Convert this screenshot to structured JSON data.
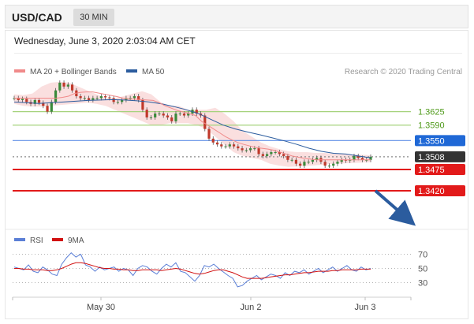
{
  "header": {
    "pair": "USD/CAD",
    "timeframe": "30 MIN"
  },
  "datetime": "Wednesday, June 3, 2020 2:03:04 AM CET",
  "legend": {
    "ma20": {
      "label": "MA 20 + Bollinger Bands",
      "color": "#f08a8a"
    },
    "ma50": {
      "label": "MA 50",
      "color": "#2b5c9e"
    },
    "credit": "Research © 2020 Trading Central"
  },
  "rsi_legend": {
    "rsi": {
      "label": "RSI",
      "color": "#5b7fd6"
    },
    "ma9": {
      "label": "9MA",
      "color": "#d11111"
    }
  },
  "chart_data": {
    "type": "line",
    "price_range": [
      1.333,
      1.371
    ],
    "x_tick_labels": [
      "May 30",
      "Jun 2",
      "Jun 3"
    ],
    "levels": [
      {
        "value": "1.3625",
        "price": 1.3625,
        "color": "#a6d27c",
        "label_color": "#4f9a1a"
      },
      {
        "value": "1.3590",
        "price": 1.359,
        "color": "#a6d27c",
        "label_color": "#4f9a1a"
      },
      {
        "value": "1.3550",
        "price": 1.355,
        "color": "#5b8de6",
        "badge": "#1f68d6"
      },
      {
        "value": "1.3508",
        "price": 1.3508,
        "color": "#8a8a8a",
        "badge": "#333333",
        "dotted": true
      },
      {
        "value": "1.3475",
        "price": 1.3475,
        "color": "#e21a1a",
        "badge": "#e21a1a"
      },
      {
        "value": "1.3420",
        "price": 1.342,
        "color": "#e21a1a",
        "badge": "#e21a1a"
      }
    ],
    "close": [
      1.366,
      1.3655,
      1.3658,
      1.365,
      1.3645,
      1.3655,
      1.3648,
      1.364,
      1.3625,
      1.365,
      1.368,
      1.37,
      1.369,
      1.3695,
      1.368,
      1.3665,
      1.366,
      1.366,
      1.3655,
      1.366,
      1.366,
      1.3665,
      1.3662,
      1.366,
      1.365,
      1.365,
      1.3655,
      1.366,
      1.366,
      1.3665,
      1.3655,
      1.363,
      1.361,
      1.361,
      1.362,
      1.362,
      1.3615,
      1.361,
      1.36,
      1.362,
      1.362,
      1.3615,
      1.362,
      1.363,
      1.362,
      1.3615,
      1.358,
      1.3555,
      1.3545,
      1.354,
      1.3535,
      1.3535,
      1.354,
      1.3535,
      1.353,
      1.3525,
      1.3525,
      1.353,
      1.353,
      1.3515,
      1.351,
      1.3515,
      1.352,
      1.352,
      1.3515,
      1.351,
      1.35,
      1.35,
      1.349,
      1.3485,
      1.3495,
      1.3495,
      1.35,
      1.3505,
      1.3495,
      1.3485,
      1.3485,
      1.349,
      1.3495,
      1.35,
      1.3498,
      1.35,
      1.351,
      1.3505,
      1.35,
      1.35,
      1.3508
    ],
    "ma20": [
      1.366,
      1.366,
      1.366,
      1.366,
      1.366,
      1.366,
      1.366,
      1.366,
      1.3662,
      1.3665,
      1.3672,
      1.3675,
      1.3676,
      1.3676,
      1.3673,
      1.367,
      1.3667,
      1.3664,
      1.366,
      1.3658,
      1.3657,
      1.3656,
      1.3655,
      1.3654,
      1.3648,
      1.364,
      1.3634,
      1.3628,
      1.3624,
      1.362,
      1.3615,
      1.36,
      1.359,
      1.358,
      1.357,
      1.356,
      1.3552,
      1.3545,
      1.354,
      1.3536,
      1.3532,
      1.353,
      1.3528,
      1.3525,
      1.352,
      1.3515,
      1.351,
      1.3507,
      1.3504,
      1.3502,
      1.35,
      1.35,
      1.35,
      1.35,
      1.35,
      1.35,
      1.35,
      1.35,
      1.35,
      1.35
    ],
    "ma50": [
      1.365,
      1.3648,
      1.3646,
      1.3648,
      1.365,
      1.3652,
      1.3654,
      1.3655,
      1.3656,
      1.3655,
      1.3653,
      1.365,
      1.3645,
      1.3638,
      1.363,
      1.362,
      1.3605,
      1.359,
      1.358,
      1.3572,
      1.3565,
      1.3557,
      1.3549,
      1.354,
      1.353,
      1.3522,
      1.3517,
      1.3515,
      1.351,
      1.3505
    ],
    "bb_upper": [
      1.367,
      1.3668,
      1.3672,
      1.369,
      1.37,
      1.3702,
      1.37,
      1.369,
      1.368,
      1.367,
      1.366,
      1.366,
      1.3665,
      1.3672,
      1.3678,
      1.367,
      1.365,
      1.364,
      1.364,
      1.363,
      1.363,
      1.363,
      1.3635,
      1.362,
      1.36,
      1.3575,
      1.356,
      1.3545,
      1.3535,
      1.3528,
      1.3522,
      1.352,
      1.352,
      1.3518,
      1.3518,
      1.3516,
      1.3515,
      1.3514,
      1.3513,
      1.3512
    ],
    "bb_lower": [
      1.3645,
      1.364,
      1.3638,
      1.3638,
      1.364,
      1.3642,
      1.3644,
      1.3646,
      1.3648,
      1.3645,
      1.364,
      1.363,
      1.362,
      1.361,
      1.36,
      1.359,
      1.359,
      1.3595,
      1.3595,
      1.3595,
      1.359,
      1.358,
      1.356,
      1.354,
      1.352,
      1.351,
      1.3505,
      1.35,
      1.349,
      1.3485,
      1.3482,
      1.3483,
      1.3484,
      1.3486,
      1.3488,
      1.349,
      1.3491,
      1.3492,
      1.3493,
      1.3494
    ],
    "rsi": {
      "range": [
        15,
        75
      ],
      "ticks": [
        "70",
        "50",
        "30"
      ],
      "tick_values": [
        70,
        50,
        30
      ],
      "rsi": [
        52,
        50,
        48,
        55,
        46,
        44,
        52,
        48,
        42,
        40,
        56,
        65,
        72,
        66,
        70,
        55,
        52,
        46,
        52,
        48,
        50,
        52,
        46,
        50,
        48,
        40,
        50,
        54,
        52,
        46,
        42,
        50,
        56,
        52,
        58,
        46,
        44,
        38,
        32,
        40,
        54,
        52,
        56,
        50,
        45,
        40,
        36,
        24,
        26,
        32,
        36,
        40,
        34,
        38,
        42,
        40,
        36,
        44,
        40,
        46,
        44,
        48,
        42,
        46,
        50,
        44,
        48,
        52,
        46,
        50,
        54,
        48,
        46,
        52,
        48,
        50
      ],
      "ma9": [
        50,
        50,
        49,
        49,
        48,
        48,
        48,
        47,
        47,
        48,
        50,
        53,
        56,
        58,
        58,
        57,
        55,
        53,
        51,
        50,
        50,
        49,
        49,
        48,
        48,
        47,
        47,
        48,
        48,
        48,
        48,
        47,
        48,
        49,
        50,
        49,
        47,
        45,
        43,
        42,
        43,
        45,
        47,
        48,
        48,
        46,
        44,
        41,
        38,
        36,
        36,
        36,
        36,
        37,
        38,
        39,
        40,
        41,
        41,
        42,
        43,
        44,
        44,
        45,
        46,
        46,
        46,
        47,
        47,
        48,
        48,
        48,
        48,
        49,
        49,
        49
      ]
    }
  }
}
